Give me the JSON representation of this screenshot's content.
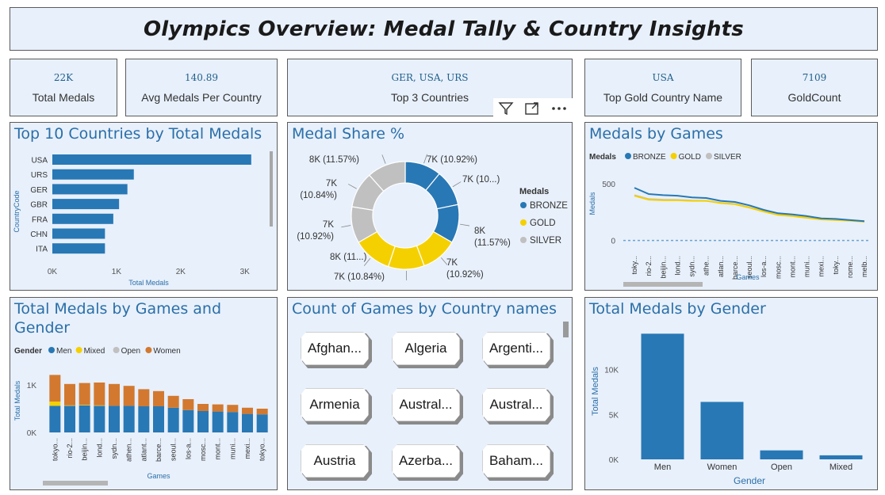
{
  "header": {
    "title": "Olympics Overview: Medal Tally & Country Insights"
  },
  "kpis": [
    {
      "value": "22K",
      "label": "Total Medals"
    },
    {
      "value": "140.89",
      "label": "Avg Medals Per Country"
    },
    {
      "value": "GER, USA, URS",
      "label": "Top 3 Countries"
    },
    {
      "value": "USA",
      "label": "Top Gold Country Name"
    },
    {
      "value": "7109",
      "label": "GoldCount"
    }
  ],
  "visual_header": {
    "filter_icon": "filter-icon",
    "focus_icon": "focus-mode-icon",
    "more_icon": "more-options-icon"
  },
  "titles": {
    "top10": "Top 10 Countries by Total Medals",
    "share": "Medal Share %",
    "games": "Medals by Games",
    "games_gender": "Total Medals by Games and Gender",
    "count_games": "Count of Games by Country names",
    "gender": "Total Medals by Gender"
  },
  "slicer": {
    "items": [
      "Afghan...",
      "Algeria",
      "Argenti...",
      "Armenia",
      "Austral...",
      "Austral...",
      "Austria",
      "Azerba...",
      "Baham..."
    ]
  },
  "chart_data": [
    {
      "id": "top10",
      "type": "bar",
      "orientation": "horizontal",
      "title": "Top 10 Countries by Total Medals",
      "xlabel": "Total Medals",
      "ylabel": "CountryCode",
      "categories": [
        "USA",
        "URS",
        "GER",
        "GBR",
        "FRA",
        "CHN",
        "ITA"
      ],
      "values": [
        3100,
        1270,
        1170,
        1040,
        950,
        820,
        820
      ],
      "xticks": [
        "0K",
        "1K",
        "2K",
        "3K"
      ],
      "xlim": [
        0,
        3300
      ],
      "color": "#2878b5"
    },
    {
      "id": "share",
      "type": "pie",
      "title": "Medal Share %",
      "legend_title": "Medals",
      "legend": [
        {
          "name": "BRONZE",
          "color": "#2878b5"
        },
        {
          "name": "GOLD",
          "color": "#f5d000"
        },
        {
          "name": "SILVER",
          "color": "#c0c0c0"
        }
      ],
      "slices": [
        {
          "series": "BRONZE",
          "label": "7K (10.92%)",
          "value": 10.92
        },
        {
          "series": "BRONZE",
          "label": "7K (10...)",
          "value": 10.84
        },
        {
          "series": "BRONZE",
          "label": "8K\n(11.57%)",
          "value": 11.57
        },
        {
          "series": "GOLD",
          "label": "7K\n(10.92%)",
          "value": 10.92
        },
        {
          "series": "GOLD",
          "label": "7K (10.84%)",
          "value": 10.84
        },
        {
          "series": "GOLD",
          "label": "8K (11...)",
          "value": 11.57
        },
        {
          "series": "SILVER",
          "label": "7K\n(10.92%)",
          "value": 10.92
        },
        {
          "series": "SILVER",
          "label": "7K\n(10.84%)",
          "value": 10.84
        },
        {
          "series": "SILVER",
          "label": "8K (11.57%)",
          "value": 11.57
        }
      ]
    },
    {
      "id": "games",
      "type": "line",
      "title": "Medals by Games",
      "legend_title": "Medals",
      "xlabel": "Games",
      "ylabel": "Medals",
      "categories": [
        "toky...",
        "rio-2...",
        "beijin...",
        "lond...",
        "sydn...",
        "athe...",
        "atlan...",
        "barce...",
        "seoul...",
        "los-a...",
        "mosc...",
        "mont...",
        "muni...",
        "mexi...",
        "toky...",
        "rome...",
        "melb..."
      ],
      "yticks": [
        "0",
        "500"
      ],
      "ylim": [
        -80,
        620
      ],
      "series": [
        {
          "name": "BRONZE",
          "color": "#2878b5",
          "values": [
            465,
            410,
            400,
            395,
            380,
            375,
            350,
            340,
            310,
            270,
            240,
            230,
            215,
            195,
            190,
            180,
            170
          ]
        },
        {
          "name": "GOLD",
          "color": "#f5d000",
          "values": [
            395,
            360,
            355,
            355,
            350,
            350,
            330,
            320,
            290,
            255,
            225,
            215,
            200,
            185,
            180,
            175,
            165
          ]
        },
        {
          "name": "SILVER",
          "color": "#c0c0c0",
          "values": [
            400,
            365,
            360,
            358,
            352,
            350,
            332,
            322,
            292,
            258,
            228,
            218,
            202,
            188,
            182,
            178,
            168
          ]
        }
      ]
    },
    {
      "id": "games_gender",
      "type": "bar",
      "stacked": true,
      "title": "Total Medals by Games and Gender",
      "legend_title": "Gender",
      "xlabel": "Games",
      "ylabel": "Total Medals",
      "categories": [
        "tokyo...",
        "rio-2...",
        "beijin...",
        "lond...",
        "sydn...",
        "athen...",
        "atlant...",
        "barce...",
        "seoul...",
        "los-a...",
        "mosc...",
        "mont...",
        "muni...",
        "mexi...",
        "tokyo..."
      ],
      "yticks": [
        "0K",
        "1K"
      ],
      "ylim": [
        0,
        1300
      ],
      "series": [
        {
          "name": "Men",
          "color": "#2878b5",
          "values": [
            560,
            560,
            570,
            560,
            560,
            560,
            550,
            550,
            520,
            470,
            450,
            440,
            430,
            390,
            380
          ]
        },
        {
          "name": "Mixed",
          "color": "#f5d000",
          "values": [
            90,
            10,
            10,
            10,
            0,
            0,
            0,
            0,
            0,
            0,
            0,
            0,
            0,
            0,
            0
          ]
        },
        {
          "name": "Open",
          "color": "#c0c0c0",
          "values": [
            0,
            0,
            0,
            0,
            0,
            0,
            0,
            0,
            0,
            0,
            0,
            0,
            0,
            0,
            0
          ]
        },
        {
          "name": "Women",
          "color": "#d2792f",
          "values": [
            560,
            450,
            460,
            480,
            460,
            420,
            360,
            320,
            250,
            230,
            150,
            150,
            150,
            130,
            120
          ]
        }
      ]
    },
    {
      "id": "gender",
      "type": "bar",
      "title": "Total Medals by Gender",
      "xlabel": "Gender",
      "ylabel": "Total Medals",
      "categories": [
        "Men",
        "Women",
        "Open",
        "Mixed"
      ],
      "values": [
        14000,
        6400,
        1000,
        450
      ],
      "yticks": [
        "0K",
        "5K",
        "10K"
      ],
      "ylim": [
        0,
        15000
      ],
      "color": "#2878b5"
    }
  ]
}
